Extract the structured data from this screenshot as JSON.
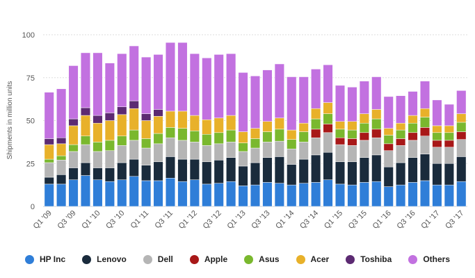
{
  "chart_data": {
    "type": "bar",
    "stacked": true,
    "ylabel": "Shipments in million units",
    "xlabel": "",
    "ylim": [
      0,
      100
    ],
    "yticks": [
      0,
      25,
      50,
      75,
      100
    ],
    "grid": true,
    "legend_position": "bottom",
    "categories": [
      "Q1 '09",
      "Q2 '09",
      "Q3 '09",
      "Q4 '09",
      "Q1 '10",
      "Q2 '10",
      "Q3 '10",
      "Q4 '10",
      "Q1 '11",
      "Q2 '11",
      "Q3 '11",
      "Q4 '11",
      "Q1 '12",
      "Q2 '12",
      "Q3 '12",
      "Q4 '12",
      "Q1 '13",
      "Q2 '13",
      "Q3 '13",
      "Q4 '13",
      "Q1 '14",
      "Q2 '14",
      "Q3 '14",
      "Q4 '14",
      "Q1 '15",
      "Q2 '15",
      "Q3 '15",
      "Q4 '15",
      "Q1 '16",
      "Q2 '16",
      "Q3 '16",
      "Q4 '16",
      "Q1 '17",
      "Q2 '17",
      "Q3 '17"
    ],
    "xtick_labels": [
      "Q1 '09",
      "",
      "Q3 '09",
      "",
      "Q1 '10",
      "",
      "Q3 '10",
      "",
      "Q1 '11",
      "",
      "Q3 '11",
      "",
      "Q1 '12",
      "",
      "Q3 '12",
      "",
      "Q1 '13",
      "",
      "Q3 '13",
      "",
      "Q1 '14",
      "",
      "Q3 '14",
      "",
      "Q1 '15",
      "",
      "Q3 '15",
      "",
      "Q1 '16",
      "",
      "Q3 '16",
      "",
      "Q1 '17",
      "",
      "Q3 '17"
    ],
    "series": [
      {
        "name": "HP Inc",
        "color": "#2f7ed8",
        "values": [
          13,
          13,
          15.5,
          18,
          15.5,
          14.5,
          15.5,
          17.5,
          15,
          15,
          16.5,
          14.5,
          15.5,
          13,
          13.5,
          14.5,
          12,
          12.5,
          14,
          13.5,
          12.5,
          13.5,
          14,
          15.5,
          13,
          12.5,
          14,
          14.5,
          11.5,
          12.5,
          14,
          15,
          12.5,
          12.5,
          14.5
        ]
      },
      {
        "name": "Lenovo",
        "color": "#1a2b3c",
        "values": [
          4,
          5.5,
          7,
          7.5,
          7,
          8,
          10,
          10,
          9,
          11,
          12.5,
          13,
          12,
          13,
          13.5,
          14,
          11.5,
          13,
          14.5,
          15.5,
          12,
          14,
          16,
          16,
          13,
          13.5,
          14.5,
          15.5,
          11.5,
          13,
          14.5,
          15.5,
          12.5,
          12.5,
          14.5
        ]
      },
      {
        "name": "Dell",
        "color": "#b5b5b5",
        "values": [
          8.5,
          8.5,
          9.5,
          10.5,
          9.5,
          10,
          10,
          11,
          10,
          10.5,
          11,
          11,
          10,
          9.5,
          9.5,
          9,
          8.5,
          8.5,
          9,
          9,
          9,
          10,
          10,
          11.5,
          10,
          9.5,
          10,
          10,
          9.5,
          10,
          10,
          10.5,
          9.5,
          9.5,
          10
        ]
      },
      {
        "name": "Apple",
        "color": "#a81818",
        "values": [
          0,
          0,
          0,
          0,
          0,
          0,
          0,
          0,
          0,
          0,
          0,
          0,
          0,
          0,
          0,
          0,
          0,
          0,
          0,
          0,
          0,
          0,
          5,
          5,
          4,
          4,
          4.5,
          5,
          4,
          4,
          4.5,
          5,
          4,
          4,
          4.5
        ]
      },
      {
        "name": "Asus",
        "color": "#7ab82e",
        "values": [
          2,
          2.5,
          4,
          5,
          5.5,
          6,
          5.5,
          6,
          5.5,
          6,
          6,
          7,
          6.5,
          6.5,
          6.5,
          7,
          5,
          5.5,
          6,
          7,
          5.5,
          6,
          6,
          6,
          5,
          5,
          5.5,
          6,
          5,
          5,
          5.5,
          6,
          4.5,
          4.5,
          5.5
        ]
      },
      {
        "name": "Acer",
        "color": "#e8b12a",
        "values": [
          8.5,
          7,
          11,
          12,
          11,
          11.5,
          12.5,
          12.5,
          10.5,
          10,
          9.5,
          10,
          9,
          8.5,
          8.5,
          8.5,
          6.5,
          6,
          6,
          6.5,
          5.5,
          5,
          6,
          6.5,
          4.5,
          5,
          5.5,
          5.5,
          4,
          4,
          4.5,
          5,
          4,
          4,
          5
        ]
      },
      {
        "name": "Toshiba",
        "color": "#5c2a72",
        "values": [
          3.5,
          3.5,
          4,
          4.5,
          4.5,
          4.5,
          4.5,
          4.5,
          4,
          4,
          0,
          0,
          0,
          0,
          0,
          0,
          0,
          0,
          0,
          0,
          0,
          0,
          0,
          0,
          0,
          0,
          0,
          0,
          0,
          0,
          0,
          0,
          0,
          0,
          0
        ]
      },
      {
        "name": "Others",
        "color": "#c271e0",
        "values": [
          27,
          28.5,
          31,
          32,
          36.5,
          29,
          31,
          32,
          33,
          32,
          40,
          40,
          36,
          36,
          37,
          36,
          34.5,
          30.5,
          30,
          31.5,
          31,
          27,
          23,
          22,
          21,
          20,
          19,
          19,
          18.5,
          16,
          14,
          16,
          15,
          12.5,
          13.5
        ]
      }
    ]
  },
  "legend": {
    "items": [
      {
        "label": "HP Inc",
        "color": "#2f7ed8"
      },
      {
        "label": "Lenovo",
        "color": "#1a2b3c"
      },
      {
        "label": "Dell",
        "color": "#b5b5b5"
      },
      {
        "label": "Apple",
        "color": "#a81818"
      },
      {
        "label": "Asus",
        "color": "#7ab82e"
      },
      {
        "label": "Acer",
        "color": "#e8b12a"
      },
      {
        "label": "Toshiba",
        "color": "#5c2a72"
      },
      {
        "label": "Others",
        "color": "#c271e0"
      }
    ]
  }
}
